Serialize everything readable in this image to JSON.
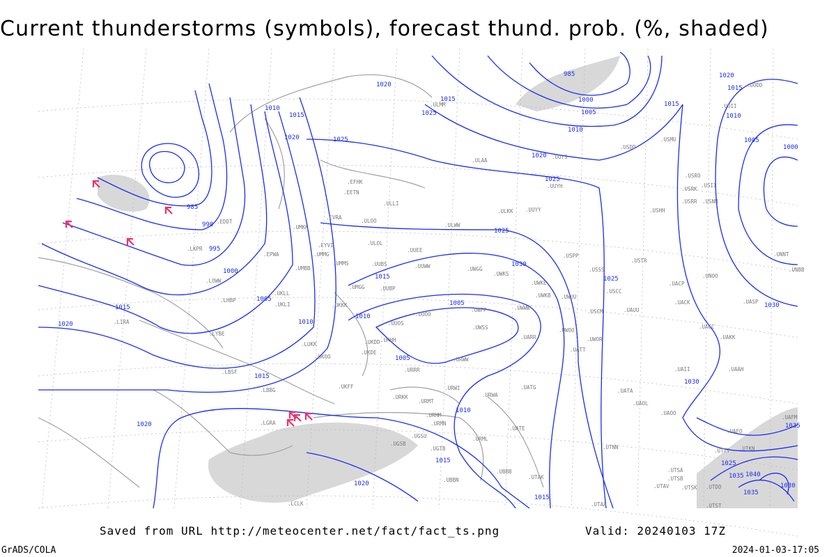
{
  "title": "Current thunderstorms (symbols), forecast thund. prob. (%, shaded)",
  "footer": {
    "saved_from": "Saved from URL http://meteocenter.net/fact/fact_ts.png",
    "valid": "Valid: 20240103 17Z",
    "software": "GrADS/COLA",
    "timestamp": "2024-01-03-17:05"
  },
  "colors": {
    "isobar": "#1a2cf0",
    "coast": "#a0a0a0",
    "shading": "#d8d8d8",
    "thunderstorm_symbol": "#f0306a",
    "station_text": "#7a7a7a"
  },
  "isobar_labels": [
    "985",
    "990",
    "995",
    "1000",
    "1005",
    "1010",
    "1015",
    "1020",
    "1025",
    "1030",
    "1035",
    "1040"
  ],
  "stations": [
    "EDDT",
    "UMKK",
    "EPWA",
    "LKPR",
    "UMMG",
    "UMBB",
    "LOWW",
    "LHBP",
    "UKLL",
    "UKLI",
    "LIRA",
    "LYBE",
    "LUKK",
    "UKOO",
    "LBSF",
    "LBBG",
    "LGRA",
    "UKKK",
    "UKFF",
    "URKK",
    "UUEE",
    "UMMS",
    "ULOL",
    "ULOO",
    "ULLI",
    "EFHK",
    "EETN",
    "EVRA",
    "EYVI",
    "UUBS",
    "UUBP",
    "UMGG",
    "UUWW",
    "UWGG",
    "UWKS",
    "UWKE",
    "UWKB",
    "UWUU",
    "UWWW",
    "UWPP",
    "UUOO",
    "UUOS",
    "UKHH",
    "UKDD",
    "UKDE",
    "URRR",
    "URWI",
    "URMT",
    "URMM",
    "URMN",
    "URWA",
    "UATG",
    "URWW",
    "UWSS",
    "UARR",
    "UWOO",
    "UATT",
    "UWOR",
    "USCM",
    "USSS",
    "USCC",
    "USTR",
    "USPP",
    "UUYY",
    "ULKK",
    "ULWW",
    "UUYH",
    "UUYS",
    "USDD",
    "USMU",
    "USRO",
    "USRK",
    "USRR",
    "USNN",
    "USII",
    "USHH",
    "UACP",
    "UACK",
    "UACC",
    "UAKK",
    "UNOO",
    "UNBB",
    "UNNT",
    "UASP",
    "UAUU",
    "UATA",
    "UAOL",
    "UAOO",
    "UAAH",
    "UAII",
    "UAFM",
    "ULAA",
    "ULMM",
    "URML",
    "UATE",
    "UGSB",
    "UGTB",
    "UGSU",
    "UBBB",
    "UBBN",
    "UTAK",
    "UTAV",
    "UTSA",
    "UTSB",
    "UTSK",
    "UTDD",
    "UTST",
    "UTAA",
    "UTNN",
    "UTTT",
    "UTKN",
    "UAFO",
    "LCLK",
    "UODD",
    "UOII"
  ]
}
